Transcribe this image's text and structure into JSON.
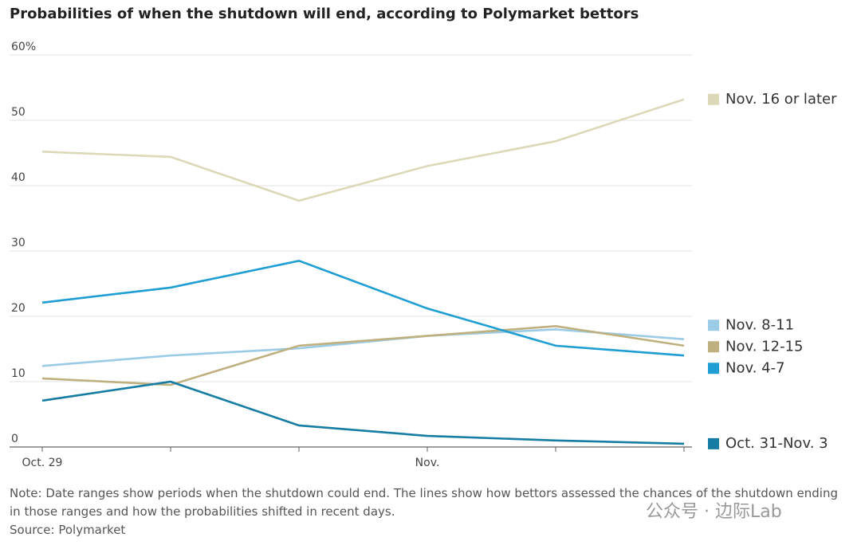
{
  "chart_data": {
    "type": "line",
    "title": "Probabilities of when the shutdown will end, according to Polymarket bettors",
    "categories": [
      "Oct. 29",
      null,
      null,
      "Nov.",
      null,
      null
    ],
    "series": [
      {
        "name": "Nov. 16 or later",
        "color": "#dbd9b8",
        "values": [
          45.2,
          44.4,
          37.7,
          43.0,
          46.8,
          53.2
        ]
      },
      {
        "name": "Nov. 8-11",
        "color": "#9ccbe6",
        "values": [
          12.4,
          14.0,
          15.1,
          17.0,
          18.0,
          16.5
        ]
      },
      {
        "name": "Nov. 12-15",
        "color": "#bfb07f",
        "values": [
          10.5,
          9.5,
          15.5,
          17.0,
          18.5,
          15.5
        ]
      },
      {
        "name": "Nov. 4-7",
        "color": "#1f9ed3",
        "values": [
          22.1,
          24.4,
          28.5,
          21.2,
          15.5,
          14.0
        ]
      },
      {
        "name": "Oct. 31-Nov. 3",
        "color": "#157ca3",
        "values": [
          7.1,
          10.0,
          3.3,
          1.7,
          1.0,
          0.5
        ]
      }
    ],
    "ylim": [
      0,
      60
    ],
    "yticks": [
      0,
      10,
      20,
      30,
      40,
      50,
      {
        "value": 60,
        "label": "60%"
      }
    ],
    "grid": true,
    "note": "Note: Date ranges show periods when the shutdown could end. The lines show how bettors assessed the chances of the shutdown ending in those ranges and how the probabilities shifted in recent days.",
    "source": "Source: Polymarket",
    "watermark": "公众号 · 边际Lab"
  }
}
